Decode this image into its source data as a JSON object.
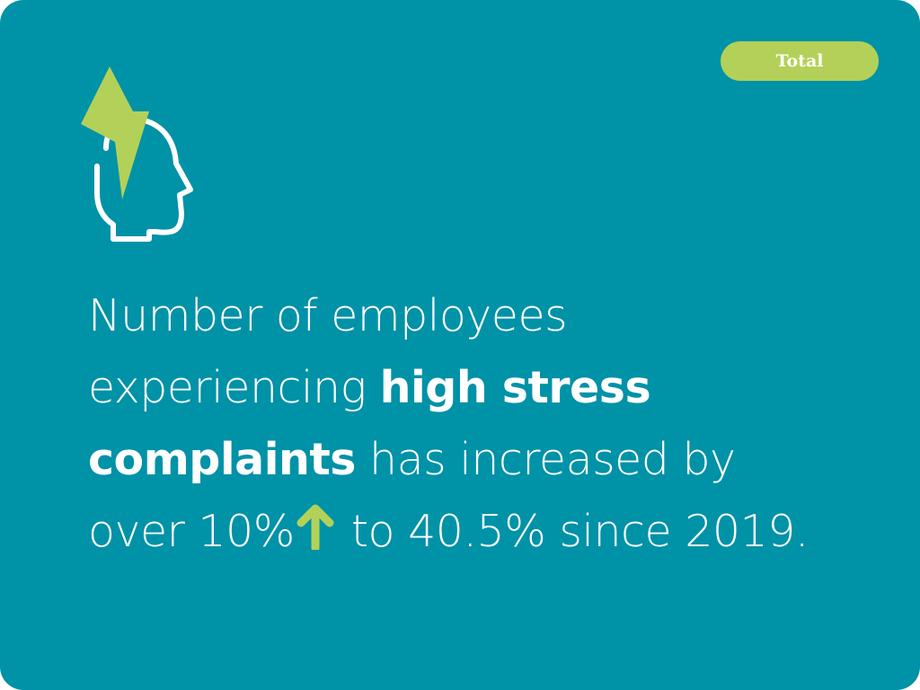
{
  "colors": {
    "background": "#0092a7",
    "accent": "#b3d158",
    "text": "#ffffff"
  },
  "badge": {
    "label": "Total"
  },
  "icons": {
    "head": "head-with-lightning-icon",
    "arrow": "arrow-up-icon"
  },
  "headline": {
    "part1": "Number of employees experiencing ",
    "highlight": "high stress complaints",
    "part2": " has increased by over 10%",
    "part3": " to 40.5% since 2019."
  }
}
